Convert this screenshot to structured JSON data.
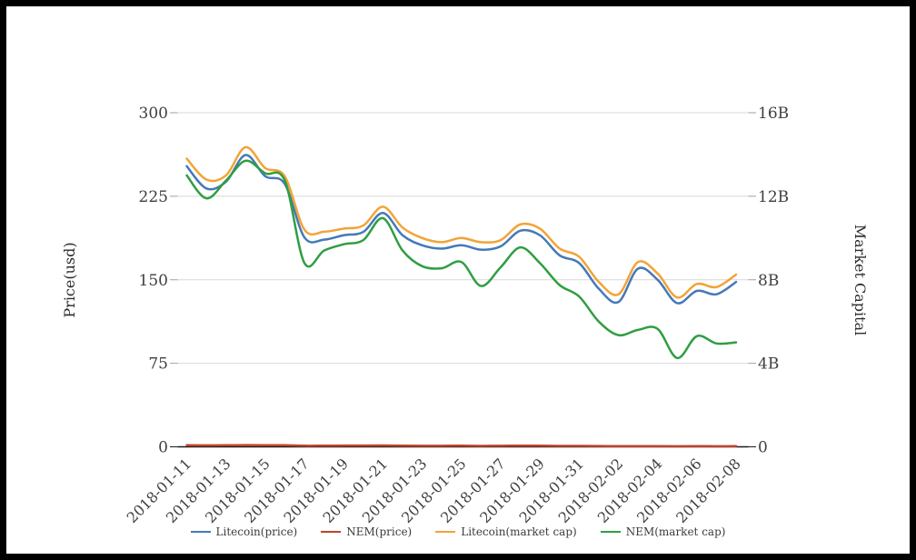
{
  "chart_data": {
    "type": "line",
    "title": "",
    "grid": true,
    "legend_position": "bottom",
    "x": [
      "2018-01-11",
      "2018-01-12",
      "2018-01-13",
      "2018-01-14",
      "2018-01-15",
      "2018-01-16",
      "2018-01-17",
      "2018-01-18",
      "2018-01-19",
      "2018-01-20",
      "2018-01-21",
      "2018-01-22",
      "2018-01-23",
      "2018-01-24",
      "2018-01-25",
      "2018-01-26",
      "2018-01-27",
      "2018-01-28",
      "2018-01-29",
      "2018-01-30",
      "2018-01-31",
      "2018-02-01",
      "2018-02-02",
      "2018-02-03",
      "2018-02-04",
      "2018-02-05",
      "2018-02-06",
      "2018-02-07",
      "2018-02-08"
    ],
    "x_tick_labels": [
      "2018-01-11",
      "2018-01-13",
      "2018-01-15",
      "2018-01-17",
      "2018-01-19",
      "2018-01-21",
      "2018-01-23",
      "2018-01-25",
      "2018-01-27",
      "2018-01-29",
      "2018-01-31",
      "2018-02-02",
      "2018-02-04",
      "2018-02-06",
      "2018-02-08"
    ],
    "x_tick_every": 2,
    "y_left": {
      "title": "Price(usd)",
      "range": [
        0,
        300
      ],
      "ticks": [
        {
          "label": "300",
          "value": 300
        },
        {
          "label": "225",
          "value": 225
        },
        {
          "label": "150",
          "value": 150
        },
        {
          "label": "75",
          "value": 75
        },
        {
          "label": "0",
          "value": 0
        }
      ]
    },
    "y_right": {
      "title": "Market Capital",
      "range_billions": [
        0,
        16
      ],
      "ticks": [
        {
          "label": "16B",
          "value": 16
        },
        {
          "label": "12B",
          "value": 12
        },
        {
          "label": "8B",
          "value": 8
        },
        {
          "label": "4B",
          "value": 4
        },
        {
          "label": "0",
          "value": 0
        }
      ]
    },
    "series": [
      {
        "name": "Litecoin(price)",
        "axis": "left",
        "unit": "USD",
        "color": "#4479b8",
        "values": [
          252,
          232,
          238,
          262,
          243,
          236,
          188,
          186,
          190,
          193,
          210,
          190,
          181,
          178,
          181,
          177,
          180,
          194,
          190,
          172,
          165,
          142,
          130,
          160,
          150,
          129,
          140,
          137,
          148
        ]
      },
      {
        "name": "NEM(price)",
        "axis": "left",
        "unit": "USD",
        "color": "#c0432b",
        "values": [
          1.44,
          1.32,
          1.42,
          1.52,
          1.46,
          1.42,
          0.98,
          1.04,
          1.08,
          1.1,
          1.22,
          1.04,
          0.96,
          0.95,
          0.98,
          0.86,
          0.96,
          1.06,
          0.98,
          0.86,
          0.8,
          0.67,
          0.59,
          0.62,
          0.63,
          0.47,
          0.59,
          0.55,
          0.56
        ]
      },
      {
        "name": "Litecoin(market cap)",
        "axis": "right",
        "unit": "B",
        "color": "#f2a338",
        "values": [
          13.8,
          12.8,
          13.0,
          14.35,
          13.35,
          12.95,
          10.4,
          10.3,
          10.45,
          10.6,
          11.5,
          10.5,
          10.0,
          9.8,
          10.0,
          9.8,
          9.9,
          10.65,
          10.45,
          9.5,
          9.1,
          7.9,
          7.3,
          8.85,
          8.3,
          7.15,
          7.8,
          7.65,
          8.25
        ]
      },
      {
        "name": "NEM(market cap)",
        "axis": "right",
        "unit": "B",
        "color": "#2f9e41",
        "values": [
          13.0,
          11.9,
          12.75,
          13.7,
          13.1,
          12.75,
          8.8,
          9.4,
          9.7,
          9.9,
          10.95,
          9.4,
          8.65,
          8.55,
          8.85,
          7.7,
          8.6,
          9.55,
          8.8,
          7.75,
          7.2,
          6.0,
          5.35,
          5.6,
          5.65,
          4.25,
          5.3,
          4.95,
          5.0
        ]
      }
    ],
    "legend": [
      "Litecoin(price)",
      "NEM(price)",
      "Litecoin(market cap)",
      "NEM(market cap)"
    ],
    "colors": {
      "grid": "#d8d8d8",
      "zero_axis": "#1a1a1a",
      "tick_stub": "#a0a0a0",
      "tick_label": "#3f3f3f"
    }
  }
}
